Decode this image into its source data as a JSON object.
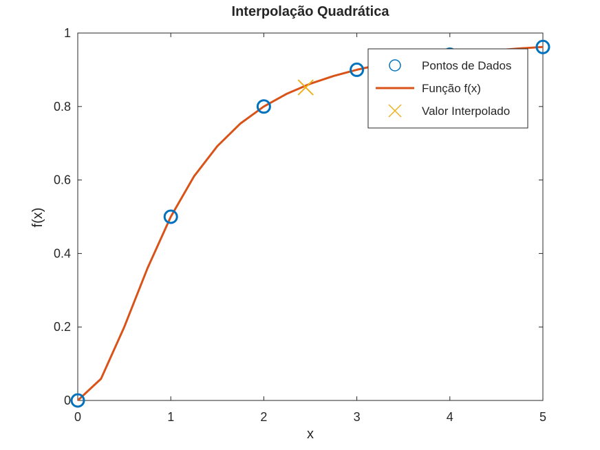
{
  "chart_data": {
    "type": "line",
    "title": "Interpolação Quadrática",
    "xlabel": "x",
    "ylabel": "f(x)",
    "xlim": [
      0,
      5
    ],
    "ylim": [
      0,
      1
    ],
    "xticks": [
      0,
      1,
      2,
      3,
      4,
      5
    ],
    "yticks": [
      0,
      0.2,
      0.4,
      0.6,
      0.8,
      1
    ],
    "xtick_labels": [
      "0",
      "1",
      "2",
      "3",
      "4",
      "5"
    ],
    "ytick_labels": [
      "0",
      "0.2",
      "0.4",
      "0.6",
      "0.8",
      "1"
    ],
    "grid": false,
    "legend_position": "top-right",
    "series": [
      {
        "name": "Pontos de Dados",
        "kind": "markers",
        "marker": "circle",
        "color": "#0072BD",
        "x": [
          0,
          1,
          2,
          3,
          4,
          5
        ],
        "y": [
          0,
          0.5,
          0.8,
          0.9,
          0.941,
          0.962
        ]
      },
      {
        "name": "Função f(x)",
        "kind": "line",
        "color": "#D95319",
        "x": [
          0,
          0.25,
          0.5,
          0.75,
          1,
          1.25,
          1.5,
          1.75,
          2,
          2.25,
          2.5,
          2.75,
          3,
          3.25,
          3.5,
          3.75,
          4,
          4.25,
          4.5,
          4.75,
          5
        ],
        "y": [
          0,
          0.059,
          0.2,
          0.36,
          0.5,
          0.61,
          0.692,
          0.754,
          0.8,
          0.835,
          0.862,
          0.883,
          0.9,
          0.914,
          0.925,
          0.934,
          0.941,
          0.947,
          0.953,
          0.958,
          0.962
        ]
      },
      {
        "name": "Valor Interpolado",
        "kind": "markers",
        "marker": "x",
        "color": "#EDB120",
        "x": [
          2.45
        ],
        "y": [
          0.852
        ]
      }
    ]
  }
}
